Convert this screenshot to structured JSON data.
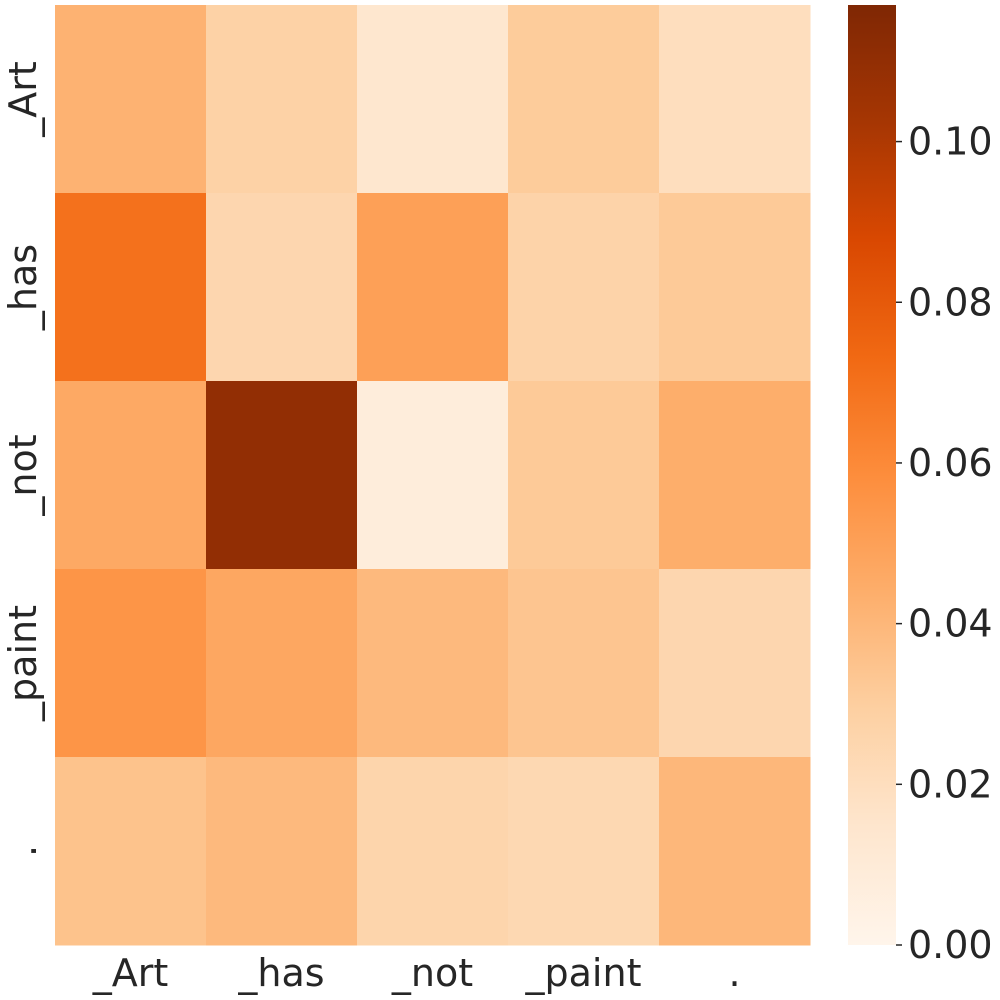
{
  "chart_data": {
    "type": "heatmap",
    "x_labels": [
      "_Art",
      "_has",
      "_not",
      "_paint",
      "."
    ],
    "y_labels": [
      "_Art",
      "_has",
      "_not",
      "_paint",
      "."
    ],
    "values": [
      [
        0.042,
        0.028,
        0.014,
        0.031,
        0.02
      ],
      [
        0.07,
        0.025,
        0.05,
        0.027,
        0.032
      ],
      [
        0.046,
        0.11,
        0.008,
        0.032,
        0.044
      ],
      [
        0.055,
        0.047,
        0.039,
        0.034,
        0.025
      ],
      [
        0.035,
        0.039,
        0.026,
        0.024,
        0.04
      ]
    ],
    "colormap": "Oranges",
    "vmin": 0.0,
    "vmax": 0.117,
    "colorbar": {
      "ticks": [
        0.0,
        0.02,
        0.04,
        0.06,
        0.08,
        0.1
      ],
      "tick_labels": [
        "0.00",
        "0.02",
        "0.04",
        "0.06",
        "0.08",
        "0.10"
      ]
    },
    "title": "",
    "xlabel": "",
    "ylabel": ""
  }
}
